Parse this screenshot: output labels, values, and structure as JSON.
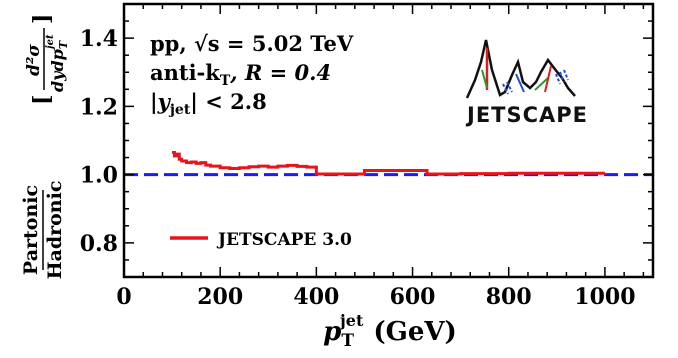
{
  "chart_data": {
    "type": "line",
    "xlim": [
      0,
      1100
    ],
    "ylim": [
      0.7,
      1.5
    ],
    "x_ticks": [
      0,
      200,
      400,
      600,
      800,
      1000
    ],
    "y_ticks": [
      0.8,
      1.0,
      1.2,
      1.4
    ],
    "x_tick_labels": [
      "0",
      "200",
      "400",
      "600",
      "800",
      "1000"
    ],
    "y_tick_labels": [
      "0.8",
      "1.0",
      "1.2",
      "1.4"
    ],
    "xlabel": {
      "main": "p",
      "sub": "T",
      "sup": "jet",
      "unit": "(GeV)"
    },
    "ylabel": {
      "ratio_num": "Partonic",
      "ratio_den": "Hadronic",
      "frac_num": "d²σ",
      "frac_den": "dydp",
      "frac_den_sub": "T",
      "frac_den_sup": "jet"
    },
    "reference_line": {
      "y": 1.0,
      "color": "#1a1aff",
      "style": "dashed"
    },
    "annotations": {
      "line1": "pp,  √s = 5.02 TeV",
      "line2_prefix": "anti-k",
      "line2_sub": "T",
      "line2_suffix": ",  R = 0.4",
      "line3_prefix": "|y",
      "line3_sub": "jet",
      "line3_suffix": "| < 2.8"
    },
    "logo_text": "JETSCAPE",
    "series": [
      {
        "name": "JETSCAPE 3.0",
        "color": "#e8141c",
        "style": "step",
        "x": [
          100,
          105,
          110,
          115,
          120,
          130,
          140,
          150,
          160,
          170,
          180,
          200,
          220,
          240,
          260,
          280,
          300,
          320,
          340,
          360,
          380,
          400,
          450,
          500,
          630,
          700,
          800,
          1000
        ],
        "y": [
          1.065,
          1.055,
          1.06,
          1.045,
          1.04,
          1.035,
          1.037,
          1.033,
          1.035,
          1.028,
          1.025,
          1.02,
          1.018,
          1.02,
          1.023,
          1.025,
          1.022,
          1.025,
          1.027,
          1.024,
          1.022,
          1.002,
          1.002,
          1.012,
          1.002,
          1.003,
          1.004,
          1.005
        ]
      }
    ],
    "legend": {
      "position": "bottom-left",
      "entries": [
        "JETSCAPE 3.0"
      ]
    }
  }
}
